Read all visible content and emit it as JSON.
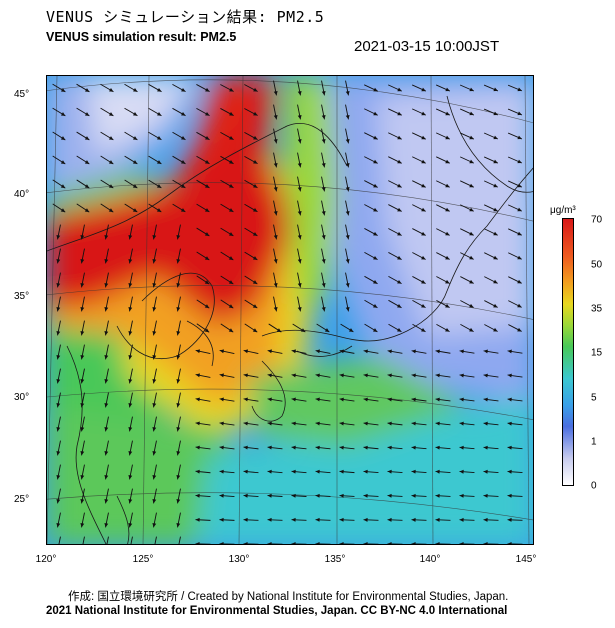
{
  "header": {
    "title_jp": "VENUS シミュレーション結果: PM2.5",
    "title_en": "VENUS simulation result: PM2.5",
    "timestamp": "2021-03-15 10:00JST"
  },
  "map": {
    "lat_labels": [
      "45°",
      "40°",
      "35°",
      "30°",
      "25°"
    ],
    "lon_labels": [
      "120°",
      "125°",
      "130°",
      "135°",
      "140°",
      "145°"
    ]
  },
  "colorbar": {
    "unit": "μg/m³",
    "ticks": [
      "70",
      "50",
      "35",
      "15",
      "5",
      "1",
      "0"
    ],
    "colors": [
      "#d81818",
      "#ee5a20",
      "#f2a020",
      "#e8d820",
      "#48c858",
      "#3cc8d0",
      "#4a6ee0",
      "#ffffff"
    ]
  },
  "footer": {
    "credit_jp": "作成: 国立環境研究所 / Created by National Institute for Environmental Studies, Japan.",
    "license": "2021 National Institute for Environmental Studies, Japan. CC BY-NC 4.0 International"
  }
}
